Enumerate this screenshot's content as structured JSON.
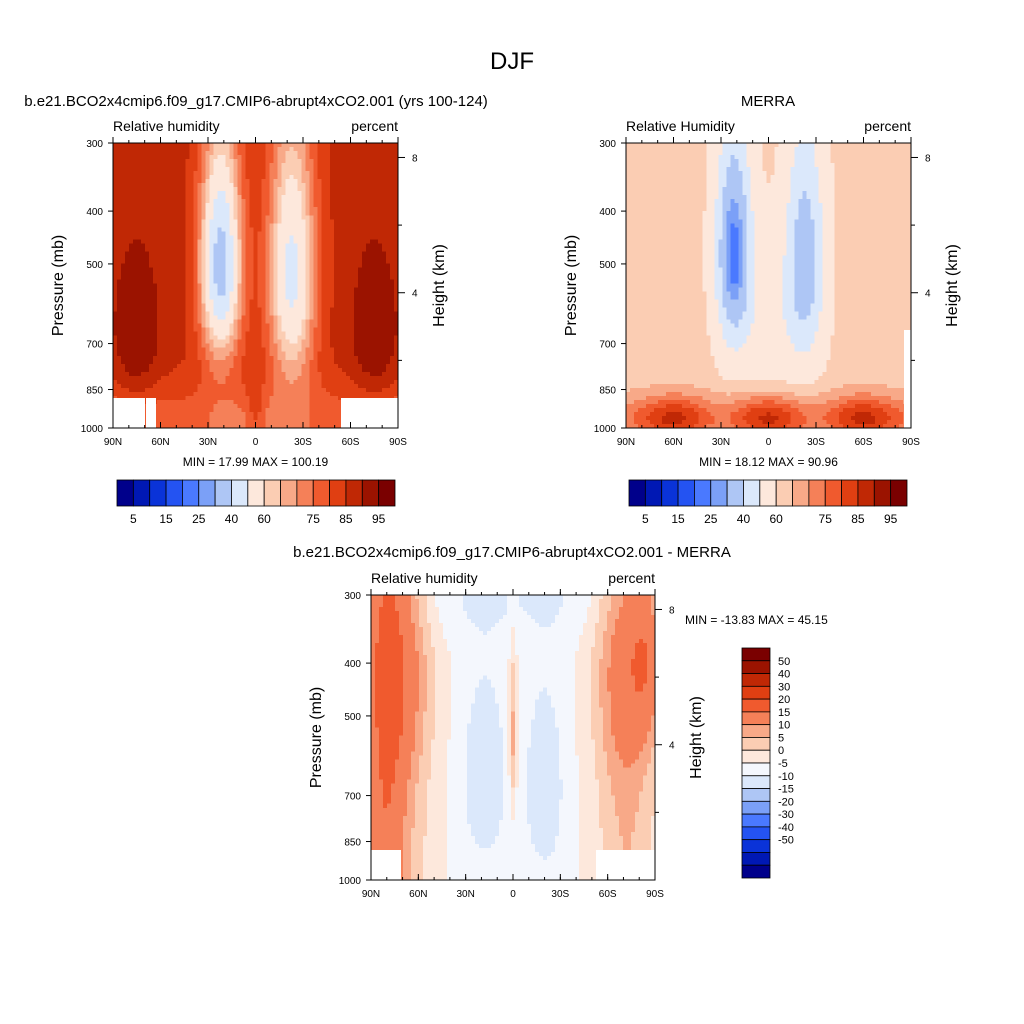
{
  "main_title": "DJF",
  "colors": {
    "rh_scale": [
      "#00008b",
      "#0018b4",
      "#0a33d8",
      "#2453f2",
      "#4a79ff",
      "#7ba0f7",
      "#aec6f5",
      "#dbe8fb",
      "#fde8dc",
      "#fbcdb3",
      "#f8a988",
      "#f58058",
      "#f05a2e",
      "#e03f12",
      "#c02805",
      "#9b1300",
      "#7a0000"
    ],
    "diff_scale": [
      "#00008b",
      "#0018b4",
      "#0a33d8",
      "#2453f2",
      "#4a79ff",
      "#7ba0f7",
      "#aec6f5",
      "#dbe8fb",
      "#f4f7fd",
      "#fde8dc",
      "#fbcdb3",
      "#f8a988",
      "#f58058",
      "#f05a2e",
      "#e03f12",
      "#c02805",
      "#9b1300",
      "#7a0000"
    ]
  },
  "chart_data": [
    {
      "type": "heatmap",
      "panel": "model",
      "title": "b.e21.BCO2x4cmip6.f09_g17.CMIP6-abrupt4xCO2.001 (yrs 100-124)",
      "left_string": "Relative humidity",
      "right_string": "percent",
      "ylabel": "Pressure (mb)",
      "ylabel_right": "Height (km)",
      "x_ticks": [
        "90N",
        "60N",
        "30N",
        "0",
        "30S",
        "60S",
        "90S"
      ],
      "x_values": [
        90,
        60,
        30,
        0,
        -30,
        -60,
        -90
      ],
      "y_ticks": [
        "300",
        "400",
        "500",
        "700",
        "850",
        "1000"
      ],
      "y_values": [
        300,
        400,
        500,
        700,
        850,
        1000
      ],
      "right_ticks": [
        "8",
        "4"
      ],
      "right_values": [
        8,
        4
      ],
      "stats": "MIN =  17.99  MAX = 100.19",
      "min": 17.99,
      "max": 100.19,
      "levels": [
        5,
        10,
        15,
        20,
        25,
        30,
        40,
        50,
        60,
        65,
        70,
        75,
        80,
        85,
        90,
        95
      ],
      "colorbar_labels": [
        "5",
        "15",
        "25",
        "40",
        "60",
        "75",
        "85",
        "95"
      ],
      "colorbar_orientation": "horizontal"
    },
    {
      "type": "heatmap",
      "panel": "obs",
      "title": "MERRA",
      "left_string": "Relative Humidity",
      "right_string": "percent",
      "ylabel": "Pressure (mb)",
      "ylabel_right": "Height (km)",
      "x_ticks": [
        "90N",
        "60N",
        "30N",
        "0",
        "30S",
        "60S",
        "90S"
      ],
      "x_values": [
        90,
        60,
        30,
        0,
        -30,
        -60,
        -90
      ],
      "y_ticks": [
        "300",
        "400",
        "500",
        "700",
        "850",
        "1000"
      ],
      "y_values": [
        300,
        400,
        500,
        700,
        850,
        1000
      ],
      "right_ticks": [
        "8",
        "4"
      ],
      "right_values": [
        8,
        4
      ],
      "stats": "MIN =  18.12  MAX =  90.96",
      "min": 18.12,
      "max": 90.96,
      "levels": [
        5,
        10,
        15,
        20,
        25,
        30,
        40,
        50,
        60,
        65,
        70,
        75,
        80,
        85,
        90,
        95
      ],
      "colorbar_labels": [
        "5",
        "15",
        "25",
        "40",
        "60",
        "75",
        "85",
        "95"
      ],
      "colorbar_orientation": "horizontal"
    },
    {
      "type": "heatmap",
      "panel": "diff",
      "title": "b.e21.BCO2x4cmip6.f09_g17.CMIP6-abrupt4xCO2.001 - MERRA",
      "left_string": "Relative humidity",
      "right_string": "percent",
      "ylabel": "Pressure (mb)",
      "ylabel_right": "Height (km)",
      "x_ticks": [
        "90N",
        "60N",
        "30N",
        "0",
        "30S",
        "60S",
        "90S"
      ],
      "x_values": [
        90,
        60,
        30,
        0,
        -30,
        -60,
        -90
      ],
      "y_ticks": [
        "300",
        "400",
        "500",
        "700",
        "850",
        "1000"
      ],
      "y_values": [
        300,
        400,
        500,
        700,
        850,
        1000
      ],
      "right_ticks": [
        "8",
        "4"
      ],
      "right_values": [
        8,
        4
      ],
      "stats": "MIN = -13.83  MAX =  45.15",
      "min": -13.83,
      "max": 45.15,
      "levels": [
        -50,
        -40,
        -30,
        -20,
        -15,
        -10,
        -5,
        0,
        5,
        10,
        15,
        20,
        30,
        40,
        50
      ],
      "colorbar_labels": [
        "50",
        "40",
        "30",
        "20",
        "15",
        "10",
        "5",
        "0",
        "-5",
        "-10",
        "-15",
        "-20",
        "-30",
        "-40",
        "-50"
      ],
      "colorbar_orientation": "vertical"
    }
  ]
}
